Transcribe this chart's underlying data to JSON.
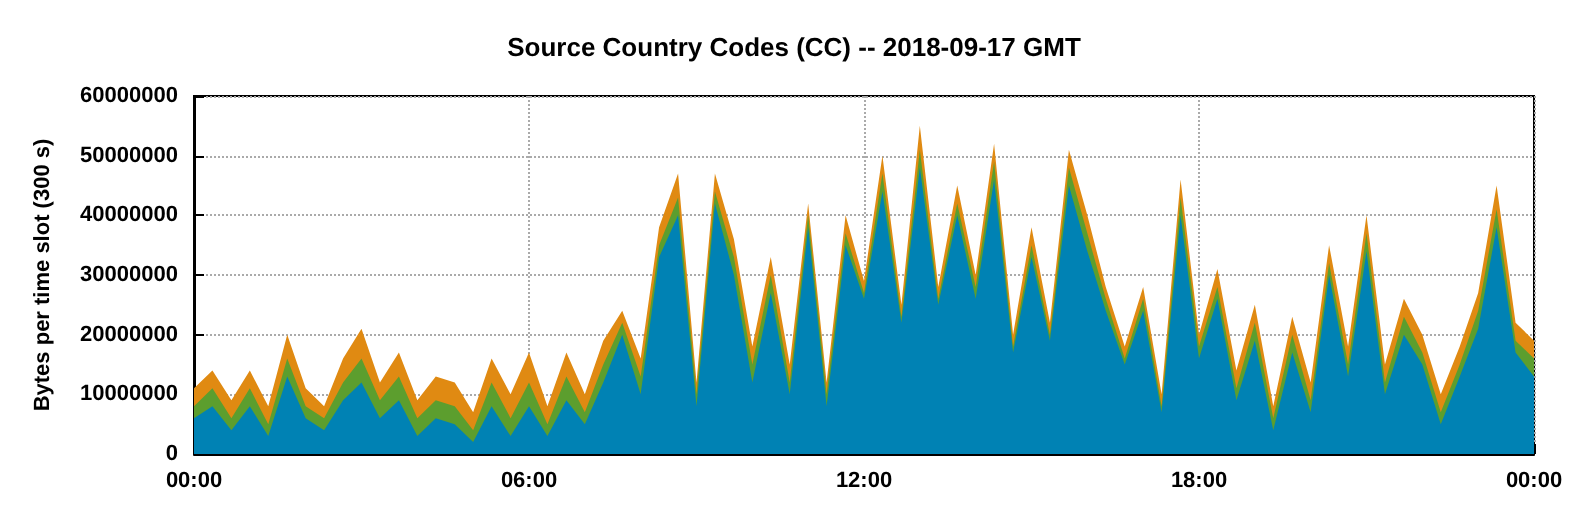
{
  "chart_data": {
    "type": "area",
    "title": "Source Country Codes (CC) -- 2018-09-17 GMT",
    "ylabel": "Bytes per time slot (300 s)",
    "stacked": true,
    "grid": true,
    "x": [
      0,
      0.33,
      0.67,
      1,
      1.33,
      1.67,
      2,
      2.33,
      2.67,
      3,
      3.33,
      3.67,
      4,
      4.33,
      4.67,
      5,
      5.33,
      5.67,
      6,
      6.33,
      6.67,
      7,
      7.33,
      7.67,
      8,
      8.33,
      8.67,
      9,
      9.33,
      9.67,
      10,
      10.33,
      10.67,
      11,
      11.33,
      11.67,
      12,
      12.33,
      12.67,
      13,
      13.33,
      13.67,
      14,
      14.33,
      14.67,
      15,
      15.33,
      15.67,
      16,
      16.33,
      16.67,
      17,
      17.33,
      17.67,
      18,
      18.33,
      18.67,
      19,
      19.33,
      19.67,
      20,
      20.33,
      20.67,
      21,
      21.33,
      21.67,
      22,
      22.33,
      22.67,
      23,
      23.33,
      23.67,
      24
    ],
    "series": [
      {
        "color": "#0082b4",
        "values": [
          6000000.0,
          8000000.0,
          4000000.0,
          8000000.0,
          3000000.0,
          13000000.0,
          6000000.0,
          4000000.0,
          9000000.0,
          12000000.0,
          6000000.0,
          9000000.0,
          3000000.0,
          6000000.0,
          5000000.0,
          2000000.0,
          8000000.0,
          3000000.0,
          8000000.0,
          3000000.0,
          9000000.0,
          5000000.0,
          12000000.0,
          20000000.0,
          10000000.0,
          33000000.0,
          40000000.0,
          8000000.0,
          42000000.0,
          30000000.0,
          12000000.0,
          27000000.0,
          10000000.0,
          38000000.0,
          8000000.0,
          35000000.0,
          26000000.0,
          44000000.0,
          22000000.0,
          48000000.0,
          25000000.0,
          40000000.0,
          26000000.0,
          46000000.0,
          17000000.0,
          33000000.0,
          19000000.0,
          45000000.0,
          34000000.0,
          24000000.0,
          15000000.0,
          24000000.0,
          7000000.0,
          40000000.0,
          16000000.0,
          26000000.0,
          9000000.0,
          19000000.0,
          4000000.0,
          17000000.0,
          7000000.0,
          30000000.0,
          13000000.0,
          34000000.0,
          10000000.0,
          20000000.0,
          15000000.0,
          5000000.0,
          13000000.0,
          21000000.0,
          38000000.0,
          17000000.0,
          13000000.0
        ]
      },
      {
        "color": "#5c9e2e",
        "values": [
          2000000.0,
          3000000.0,
          2000000.0,
          3000000.0,
          2000000.0,
          3000000.0,
          2000000.0,
          2000000.0,
          3000000.0,
          4000000.0,
          3000000.0,
          4000000.0,
          3000000.0,
          3000000.0,
          3000000.0,
          2000000.0,
          4000000.0,
          3000000.0,
          4000000.0,
          2000000.0,
          4000000.0,
          2000000.0,
          3000000.0,
          2000000.0,
          3000000.0,
          2000000.0,
          3000000.0,
          2000000.0,
          2000000.0,
          3000000.0,
          3000000.0,
          3000000.0,
          2000000.0,
          2000000.0,
          2000000.0,
          2000000.0,
          1000000.0,
          3000000.0,
          1000000.0,
          3000000.0,
          1000000.0,
          2000000.0,
          2000000.0,
          3000000.0,
          1000000.0,
          2000000.0,
          1000000.0,
          3000000.0,
          3000000.0,
          2000000.0,
          1000000.0,
          2000000.0,
          1000000.0,
          3000000.0,
          2000000.0,
          2000000.0,
          2000000.0,
          3000000.0,
          2000000.0,
          3000000.0,
          2000000.0,
          2000000.0,
          2000000.0,
          3000000.0,
          2000000.0,
          3000000.0,
          2000000.0,
          2000000.0,
          2000000.0,
          3000000.0,
          3000000.0,
          2000000.0,
          3000000.0
        ]
      },
      {
        "color": "#e08a12",
        "values": [
          3000000.0,
          3000000.0,
          3000000.0,
          3000000.0,
          3000000.0,
          4000000.0,
          3000000.0,
          2000000.0,
          4000000.0,
          5000000.0,
          3000000.0,
          4000000.0,
          3000000.0,
          4000000.0,
          4000000.0,
          3000000.0,
          4000000.0,
          4000000.0,
          5000000.0,
          3000000.0,
          4000000.0,
          3000000.0,
          4000000.0,
          2000000.0,
          3000000.0,
          3000000.0,
          4000000.0,
          2000000.0,
          3000000.0,
          3000000.0,
          3000000.0,
          3000000.0,
          3000000.0,
          2000000.0,
          2000000.0,
          3000000.0,
          2000000.0,
          3000000.0,
          2000000.0,
          4000000.0,
          2000000.0,
          3000000.0,
          2000000.0,
          3000000.0,
          2000000.0,
          3000000.0,
          2000000.0,
          3000000.0,
          3000000.0,
          2000000.0,
          2000000.0,
          2000000.0,
          2000000.0,
          3000000.0,
          2000000.0,
          3000000.0,
          3000000.0,
          3000000.0,
          2000000.0,
          3000000.0,
          3000000.0,
          3000000.0,
          3000000.0,
          3000000.0,
          3000000.0,
          3000000.0,
          3000000.0,
          3000000.0,
          3000000.0,
          3000000.0,
          4000000.0,
          3000000.0,
          3000000.0
        ]
      }
    ],
    "xlim": [
      0,
      24
    ],
    "xticks": [
      {
        "value": 0,
        "label": "00:00"
      },
      {
        "value": 6,
        "label": "06:00"
      },
      {
        "value": 12,
        "label": "12:00"
      },
      {
        "value": 18,
        "label": "18:00"
      },
      {
        "value": 24,
        "label": "00:00"
      }
    ],
    "ylim": [
      0,
      60000000
    ],
    "yticks": [
      0,
      10000000,
      20000000,
      30000000,
      40000000,
      50000000,
      60000000
    ]
  }
}
